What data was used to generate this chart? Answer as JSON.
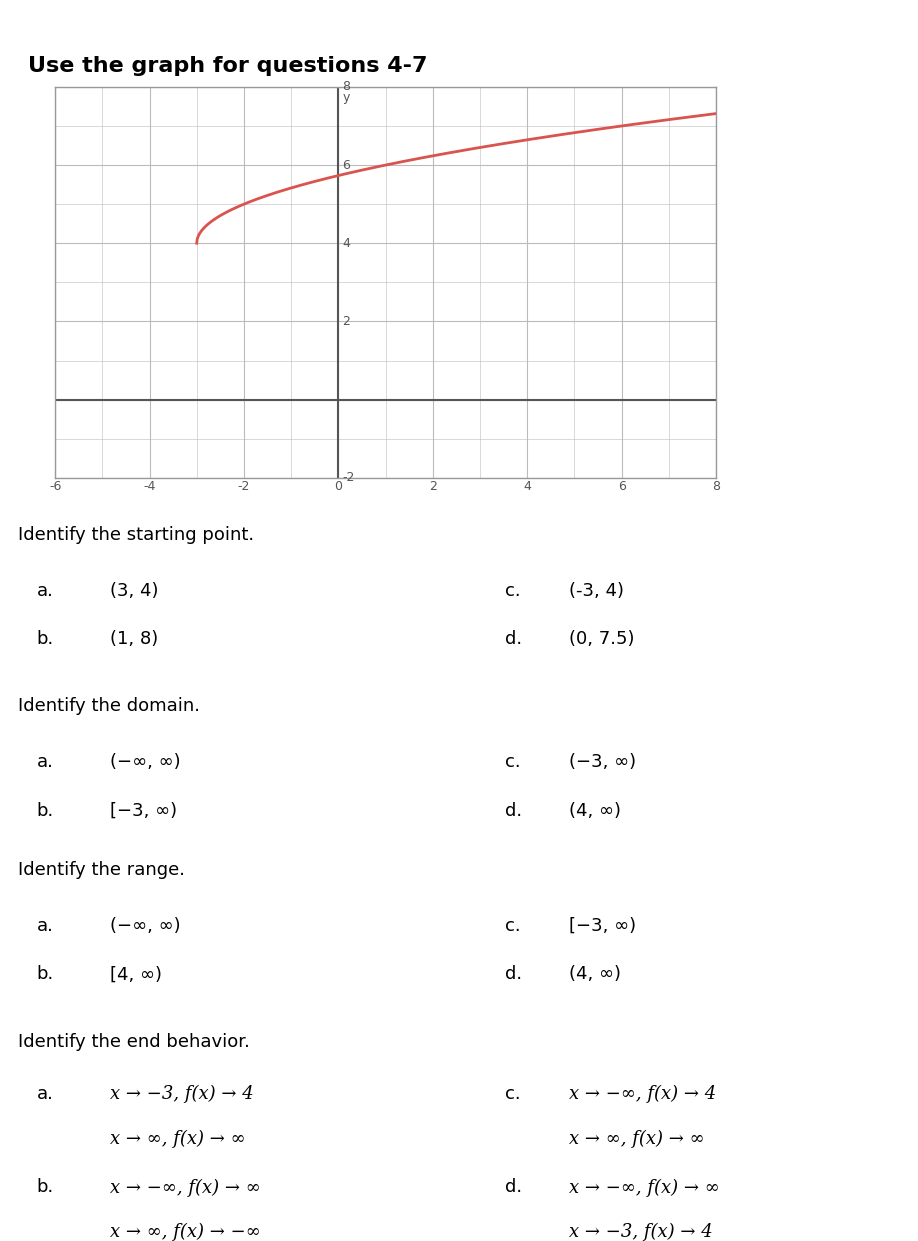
{
  "title": "Use the graph for questions 4-7",
  "curve_color": "#d9534f",
  "x_min": -6,
  "x_max": 8,
  "y_min": -2,
  "y_max": 8,
  "x_ticks_major": [
    -6,
    -4,
    -2,
    0,
    2,
    4,
    6,
    8
  ],
  "y_ticks_major": [
    -2,
    0,
    2,
    4,
    6,
    8
  ],
  "grid_color": "#bbbbbb",
  "axis_color": "#555555",
  "background_color": "#ffffff",
  "graph_border_color": "#999999",
  "questions": [
    {
      "header": "Identify the starting point.",
      "choices_left": [
        {
          "label": "a.",
          "text": "(3, 4)"
        },
        {
          "label": "b.",
          "text": "(1, 8)"
        }
      ],
      "choices_right": [
        {
          "label": "c.",
          "text": "(-3, 4)"
        },
        {
          "label": "d.",
          "text": "(0, 7.5)"
        }
      ]
    },
    {
      "header": "Identify the domain.",
      "choices_left": [
        {
          "label": "a.",
          "text": "(−∞, ∞)"
        },
        {
          "label": "b.",
          "text": "[−3, ∞)"
        }
      ],
      "choices_right": [
        {
          "label": "c.",
          "text": "(−3, ∞)"
        },
        {
          "label": "d.",
          "text": "(4, ∞)"
        }
      ]
    },
    {
      "header": "Identify the range.",
      "choices_left": [
        {
          "label": "a.",
          "text": "(−∞, ∞)"
        },
        {
          "label": "b.",
          "text": "[4, ∞)"
        }
      ],
      "choices_right": [
        {
          "label": "c.",
          "text": "[−3, ∞)"
        },
        {
          "label": "d.",
          "text": "(4, ∞)"
        }
      ]
    },
    {
      "header": "Identify the end behavior.",
      "choices_left": [
        {
          "label": "a.",
          "line1": "x → −3, f(x) → 4",
          "line2": "x → ∞, f(x) → ∞"
        },
        {
          "label": "b.",
          "line1": "x → −∞, f(x) → ∞",
          "line2": "x → ∞, f(x) → −∞"
        }
      ],
      "choices_right": [
        {
          "label": "c.",
          "line1": "x → −∞, f(x) → 4",
          "line2": "x → ∞, f(x) → ∞"
        },
        {
          "label": "d.",
          "line1": "x → −∞, f(x) → ∞",
          "line2": "x → −3, f(x) → 4"
        }
      ]
    }
  ],
  "text_color": "#000000",
  "title_fontsize": 16,
  "header_fontsize": 13,
  "choice_fontsize": 13,
  "tick_fontsize": 9
}
